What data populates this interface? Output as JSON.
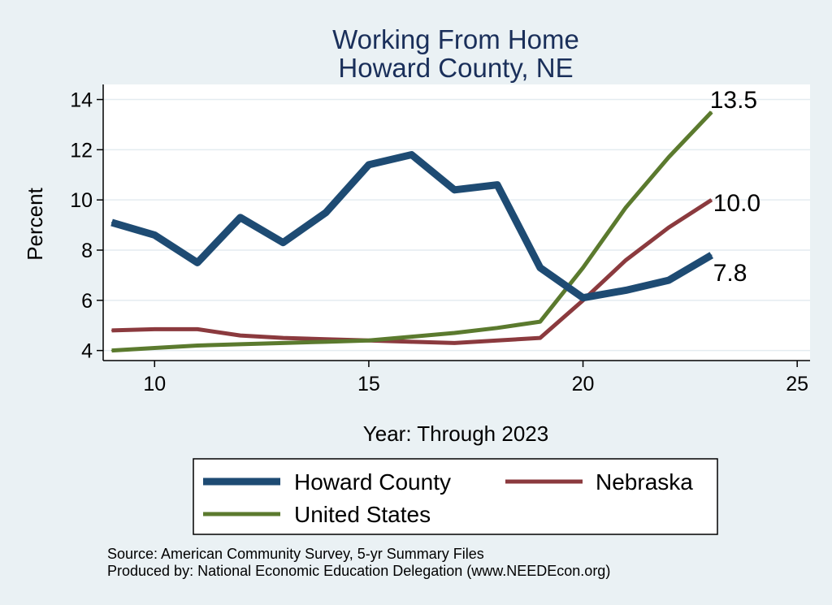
{
  "chart_data": {
    "type": "line",
    "title": "Working From Home",
    "subtitle": "Howard County, NE",
    "xlabel": "Year: Through 2023",
    "ylabel": "Percent",
    "xlim": [
      8.8,
      25.3
    ],
    "ylim": [
      3.6,
      14.6
    ],
    "xticks": [
      10,
      15,
      20,
      25
    ],
    "yticks": [
      4,
      6,
      8,
      10,
      12,
      14
    ],
    "grid": true,
    "x": [
      9,
      10,
      11,
      12,
      13,
      14,
      15,
      16,
      17,
      18,
      19,
      20,
      21,
      22,
      23
    ],
    "series": [
      {
        "name": "Howard County",
        "color": "#1e4b73",
        "values": [
          9.1,
          8.6,
          7.5,
          9.3,
          8.3,
          9.5,
          11.4,
          11.8,
          10.4,
          10.6,
          7.3,
          6.1,
          6.4,
          6.8,
          7.8
        ],
        "end_label": "7.8"
      },
      {
        "name": "Nebraska",
        "color": "#8b3a3e",
        "values": [
          4.8,
          4.85,
          4.85,
          4.6,
          4.5,
          4.45,
          4.4,
          4.35,
          4.3,
          4.4,
          4.5,
          6.0,
          7.6,
          8.9,
          10.0
        ],
        "end_label": "10.0"
      },
      {
        "name": "United States",
        "color": "#5b7a2e",
        "values": [
          4.0,
          4.1,
          4.2,
          4.25,
          4.3,
          4.35,
          4.4,
          4.55,
          4.7,
          4.9,
          5.15,
          7.3,
          9.7,
          11.7,
          13.5
        ],
        "end_label": "13.5"
      }
    ],
    "legend": {
      "placement": "bottom",
      "order": [
        "Howard County",
        "Nebraska",
        "United States"
      ]
    },
    "notes": [
      "Source: American Community Survey, 5-yr Summary Files",
      "Produced by: National Economic Education Delegation (www.NEEDEcon.org)"
    ]
  },
  "colors": {
    "background": "#eaf1f4",
    "plot_background": "#ffffff",
    "grid": "#e4ecf0",
    "title": "#1a2f5a"
  }
}
